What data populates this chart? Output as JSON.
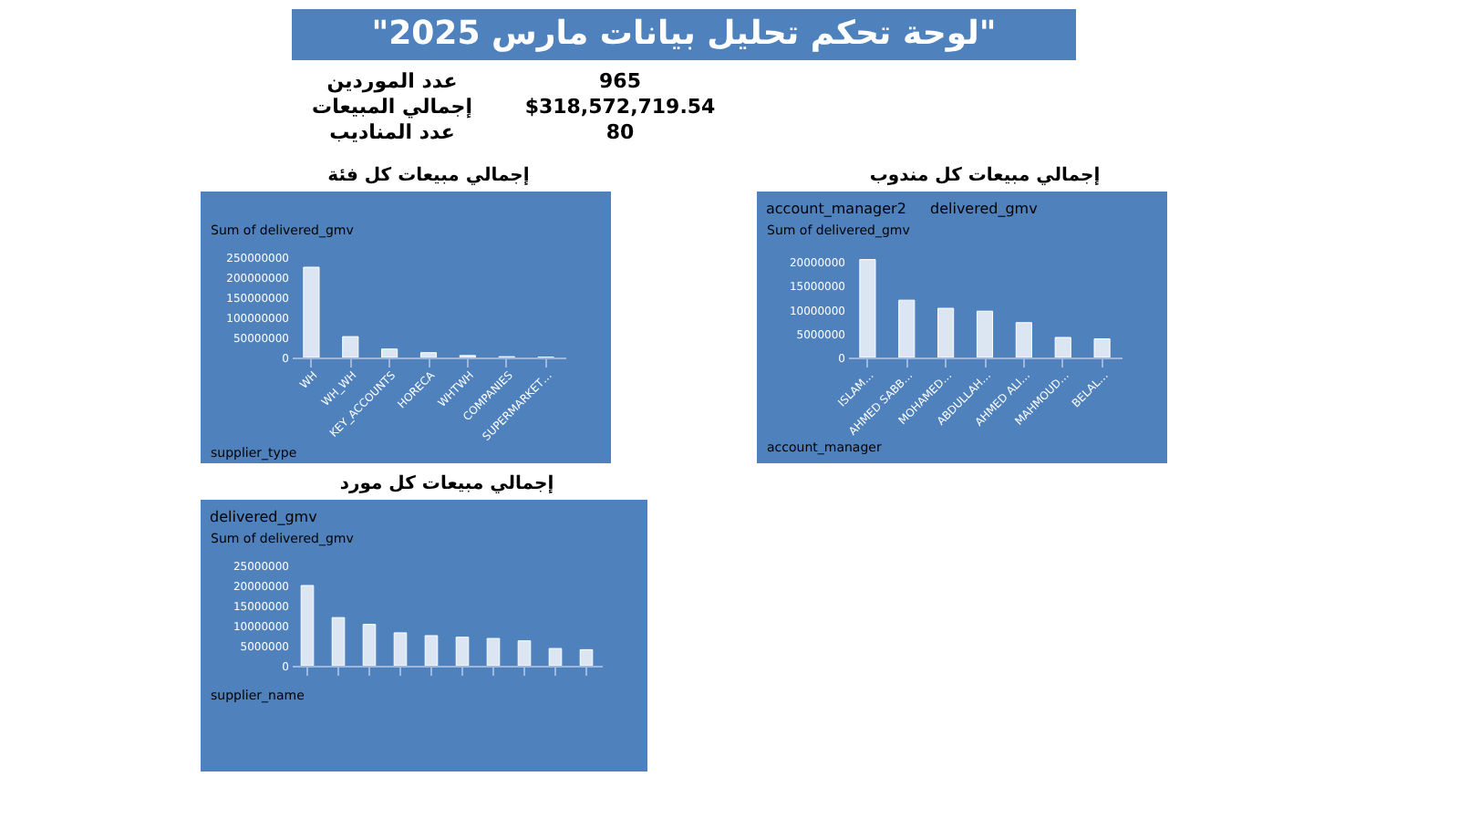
{
  "chart_data": [
    {
      "type": "other",
      "title": "\"لوحة تحكم تحليل بيانات مارس 2025\"",
      "annotations": [
        "عدد الموردين",
        "965",
        "إجمالي المبيعات",
        "$318,572,719.54",
        "عدد المناديب",
        "80"
      ]
    },
    {
      "type": "bar",
      "title": "إجمالي مبيعات كل فئة",
      "xlabel": "supplier_type",
      "ylabel": "Sum of delivered_gmv",
      "categories": [
        "WH",
        "WH_WH",
        "KEY_ACCOUNTS",
        "HORECA",
        "WHTWH",
        "COMPANIES",
        "SUPERMARKET…"
      ],
      "values": [
        225000000,
        52000000,
        21000000,
        12000000,
        5000000,
        2000000,
        1000000
      ],
      "color": "#dce6f2",
      "ylim": [
        0,
        250000000
      ],
      "yticks": [
        0,
        50000000,
        100000000,
        150000000,
        200000000,
        250000000
      ],
      "grid": false
    },
    {
      "type": "bar",
      "title": "إجمالي مبيعات كل مندوب",
      "xlabel": "account_manager",
      "ylabel": "Sum of delivered_gmv",
      "annotations": [
        "account_manager2",
        "delivered_gmv"
      ],
      "categories": [
        "ISLAM…",
        "AHMED SABB…",
        "MOHAMED…",
        "ABDULLAH…",
        "AHMED ALI…",
        "MAHMOUD…",
        "BELAL…"
      ],
      "values": [
        20500000,
        12000000,
        10300000,
        9700000,
        7300000,
        4200000,
        3900000
      ],
      "color": "#dce6f2",
      "ylim": [
        0,
        21000000
      ],
      "yticks": [
        0,
        5000000,
        10000000,
        15000000,
        20000000
      ],
      "grid": false
    },
    {
      "type": "bar",
      "title": "إجمالي مبيعات كل مورد",
      "xlabel": "supplier_name",
      "ylabel": "Sum of delivered_gmv",
      "annotations": [
        "delivered_gmv"
      ],
      "categories": [
        null,
        null,
        null,
        null,
        null,
        null,
        null,
        null,
        null,
        null
      ],
      "values": [
        20000000,
        12000000,
        10300000,
        8200000,
        7500000,
        7100000,
        6800000,
        6200000,
        4300000,
        4000000
      ],
      "color": "#dce6f2",
      "ylim": [
        0,
        25000000
      ],
      "yticks": [
        0,
        5000000,
        10000000,
        15000000,
        20000000,
        25000000
      ],
      "grid": false
    }
  ]
}
